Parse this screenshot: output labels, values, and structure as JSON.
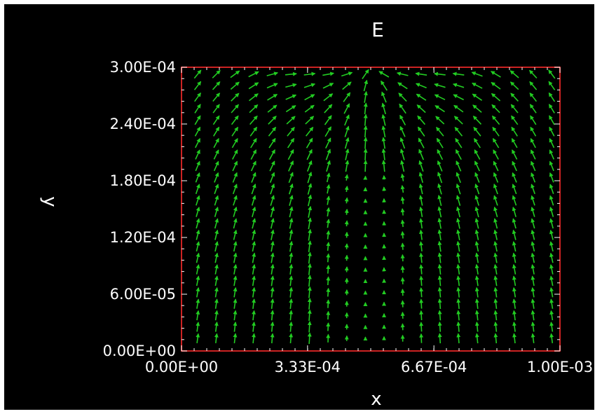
{
  "chart_data": {
    "type": "vector-field",
    "title": "E",
    "xlabel": "x",
    "ylabel": "y",
    "xlim": [
      0,
      0.001
    ],
    "ylim": [
      0,
      0.0003
    ],
    "x_ticks": [
      "0.00E+00",
      "3.33E-04",
      "6.67E-04",
      "1.00E-03"
    ],
    "x_tick_values": [
      0,
      0.000333,
      0.000667,
      0.001
    ],
    "y_ticks": [
      "0.00E+00",
      "6.00E-05",
      "1.20E-04",
      "1.80E-04",
      "2.40E-04",
      "3.00E-04"
    ],
    "y_tick_values": [
      0,
      6e-05,
      0.00012,
      0.00018,
      0.00024,
      0.0003
    ],
    "grid": false,
    "field": {
      "nx": 20,
      "ny": 24,
      "source_x": 0.0005,
      "source_y": 0.0003,
      "arrow_color": "#22cc22"
    }
  },
  "colors": {
    "background": "#000000",
    "frame": "#cc2222",
    "text": "#ffffff",
    "arrows": "#22cc22"
  }
}
